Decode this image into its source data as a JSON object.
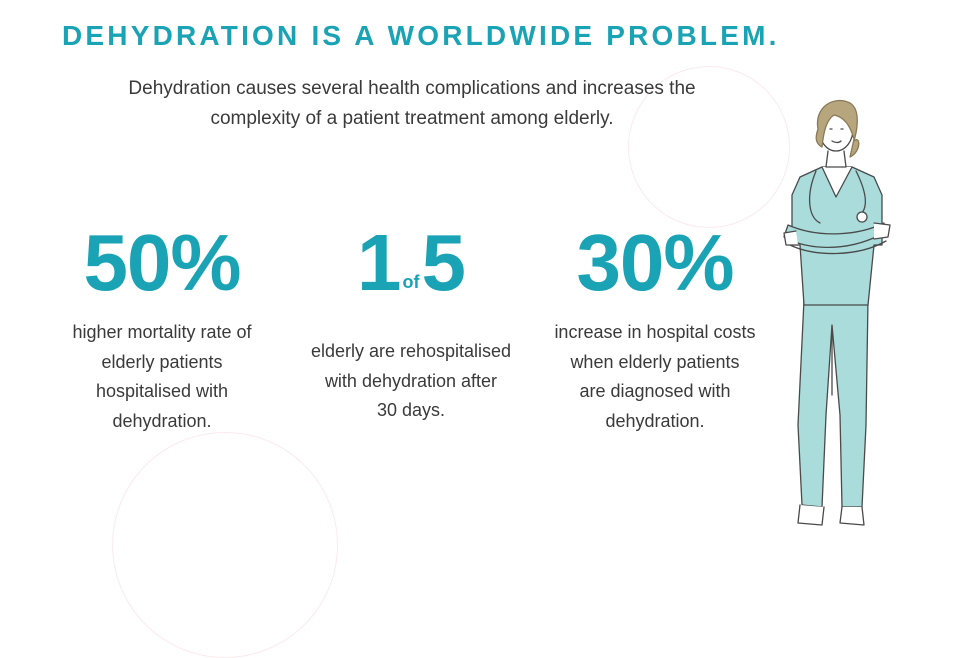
{
  "title": "DEHYDRATION IS A WORLDWIDE PROBLEM.",
  "subtitle_line1": "Dehydration causes several health complications and increases the",
  "subtitle_line2": "complexity of a patient treatment among elderly.",
  "stats": [
    {
      "value": "50%",
      "desc_lines": [
        "higher mortality rate of",
        "elderly patients",
        "hospitalised with",
        "dehydration."
      ]
    },
    {
      "value_left": "1",
      "value_mid": "of",
      "value_right": "5",
      "desc_lines": [
        "elderly are rehospitalised",
        "with dehydration after",
        "30 days."
      ]
    },
    {
      "value": "30%",
      "desc_lines": [
        "increase in hospital costs",
        "when elderly patients",
        "are diagnosed with",
        "dehydration."
      ]
    }
  ],
  "colors": {
    "accent": "#1aa3b4",
    "text": "#3a3a3a",
    "decor_circle": "#fbeaee",
    "scrubs": "#a9dcdb",
    "hair": "#b7a57e"
  },
  "icons": {
    "illustration": "nurse-illustration"
  }
}
